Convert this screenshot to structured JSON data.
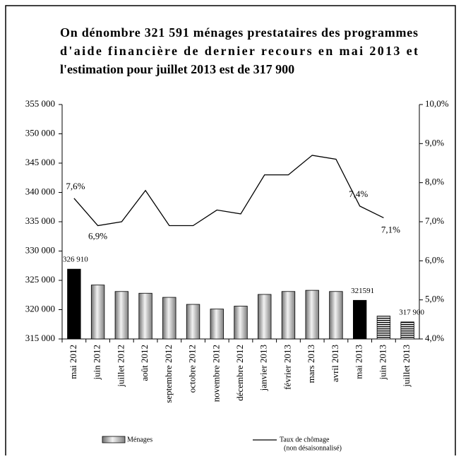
{
  "chart_data": {
    "type": "bar-line",
    "title": [
      "On dénombre 321 591 ménages prestataires des programmes",
      "d'aide financière de dernier recours en mai 2013 et",
      "l'estimation pour juillet 2013 est de 317 900"
    ],
    "categories": [
      "mai 2012",
      "juin 2012",
      "juillet 2012",
      "août 2012",
      "septembre 2012",
      "octobre 2012",
      "novembre 2012",
      "décembre 2012",
      "janvier 2013",
      "février 2013",
      "mars 2013",
      "avril 2013",
      "mai 2013",
      "juin 2013",
      "juillet 2013"
    ],
    "series": [
      {
        "name": "Ménages",
        "type": "bar",
        "color": "#b0b0b0",
        "values": [
          326910,
          324200,
          323100,
          322800,
          322100,
          320900,
          320100,
          320600,
          322600,
          323100,
          323300,
          323100,
          321591,
          318900,
          317900
        ],
        "value_labels": [
          "326 910",
          null,
          null,
          null,
          null,
          null,
          null,
          null,
          null,
          null,
          null,
          null,
          "321591",
          null,
          "317 900"
        ],
        "bar_styles": [
          "solid",
          "gradient",
          "gradient",
          "gradient",
          "gradient",
          "gradient",
          "gradient",
          "gradient",
          "gradient",
          "gradient",
          "gradient",
          "gradient",
          "solid",
          "hatched",
          "hatched"
        ]
      },
      {
        "name": [
          "Taux de chômage",
          "(non désaisonnalisé)"
        ],
        "type": "line",
        "axis": "y2",
        "color": "#000000",
        "values": [
          7.6,
          6.9,
          7.0,
          7.8,
          6.9,
          6.9,
          7.3,
          7.2,
          8.2,
          8.2,
          8.7,
          8.6,
          7.4,
          7.1,
          null
        ],
        "value_labels": [
          "7,6%",
          "6,9%",
          null,
          null,
          null,
          null,
          null,
          null,
          null,
          null,
          null,
          null,
          "7,4%",
          "7,1%",
          null
        ]
      }
    ],
    "ylim": [
      315000,
      355000
    ],
    "yticks": [
      {
        "value": 315000,
        "label": "315 000"
      },
      {
        "value": 320000,
        "label": "320 000"
      },
      {
        "value": 325000,
        "label": "325 000"
      },
      {
        "value": 330000,
        "label": "330 000"
      },
      {
        "value": 335000,
        "label": "335 000"
      },
      {
        "value": 340000,
        "label": "340 000"
      },
      {
        "value": 345000,
        "label": "345 000"
      },
      {
        "value": 350000,
        "label": "350 000"
      },
      {
        "value": 355000,
        "label": "355 000"
      }
    ],
    "y2lim": [
      4,
      10
    ],
    "y2ticks": [
      {
        "value": 4,
        "label": "4,0%"
      },
      {
        "value": 5,
        "label": "5,0%"
      },
      {
        "value": 6,
        "label": "6,0%"
      },
      {
        "value": 7,
        "label": "7,0%"
      },
      {
        "value": 8,
        "label": "8,0%"
      },
      {
        "value": 9,
        "label": "9,0%"
      },
      {
        "value": 10,
        "label": "10,0%"
      }
    ],
    "grid": false
  }
}
